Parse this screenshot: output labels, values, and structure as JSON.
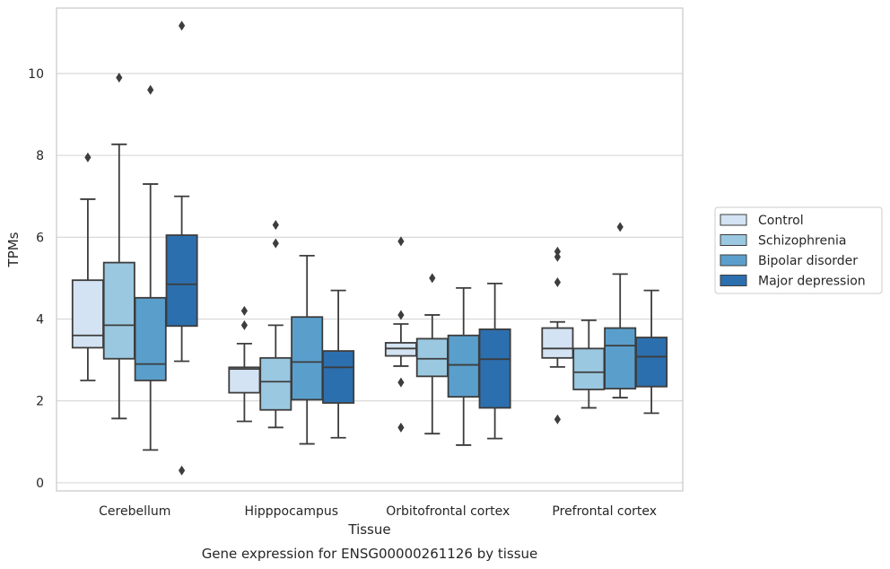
{
  "chart_data": {
    "type": "box",
    "title": "",
    "xlabel": "Tissue",
    "ylabel": "TPMs",
    "caption": "Gene expression for ENSG00000261126 by tissue",
    "ylim": [
      -0.2,
      11.6
    ],
    "yticks": [
      0,
      2,
      4,
      6,
      8,
      10
    ],
    "grid": "horizontal",
    "legend_position": "right",
    "categories": [
      "Cerebellum",
      "Hipppocampus",
      "Orbitofrontal cortex",
      "Prefrontal cortex"
    ],
    "series": [
      {
        "name": "Control",
        "color": "#d3e3f3",
        "boxes": [
          {
            "whislo": 2.5,
            "q1": 3.3,
            "med": 3.6,
            "q3": 4.95,
            "whishi": 6.93,
            "fliers": [
              7.95
            ]
          },
          {
            "whislo": 1.5,
            "q1": 2.2,
            "med": 2.78,
            "q3": 2.82,
            "whishi": 3.4,
            "fliers": [
              3.85,
              4.2
            ]
          },
          {
            "whislo": 2.85,
            "q1": 3.1,
            "med": 3.28,
            "q3": 3.42,
            "whishi": 3.88,
            "fliers": [
              4.1,
              2.45,
              1.35,
              5.9
            ]
          },
          {
            "whislo": 2.83,
            "q1": 3.05,
            "med": 3.28,
            "q3": 3.78,
            "whishi": 3.93,
            "fliers": [
              1.55,
              4.9,
              5.52,
              5.65
            ]
          }
        ]
      },
      {
        "name": "Schizophrenia",
        "color": "#9ac8e0",
        "boxes": [
          {
            "whislo": 1.57,
            "q1": 3.03,
            "med": 3.85,
            "q3": 5.38,
            "whishi": 8.27,
            "fliers": [
              9.9
            ]
          },
          {
            "whislo": 1.35,
            "q1": 1.78,
            "med": 2.47,
            "q3": 3.05,
            "whishi": 3.85,
            "fliers": [
              5.85,
              6.3
            ]
          },
          {
            "whislo": 1.2,
            "q1": 2.6,
            "med": 3.03,
            "q3": 3.52,
            "whishi": 4.1,
            "fliers": [
              5.0
            ]
          },
          {
            "whislo": 1.83,
            "q1": 2.28,
            "med": 2.7,
            "q3": 3.28,
            "whishi": 3.97,
            "fliers": []
          }
        ]
      },
      {
        "name": "Bipolar disorder",
        "color": "#5a9fcc",
        "boxes": [
          {
            "whislo": 0.8,
            "q1": 2.5,
            "med": 2.9,
            "q3": 4.52,
            "whishi": 7.3,
            "fliers": [
              9.6
            ]
          },
          {
            "whislo": 0.95,
            "q1": 2.03,
            "med": 2.95,
            "q3": 4.05,
            "whishi": 5.55,
            "fliers": []
          },
          {
            "whislo": 0.92,
            "q1": 2.1,
            "med": 2.88,
            "q3": 3.6,
            "whishi": 4.76,
            "fliers": []
          },
          {
            "whislo": 2.08,
            "q1": 2.3,
            "med": 3.35,
            "q3": 3.78,
            "whishi": 5.1,
            "fliers": [
              6.25
            ]
          }
        ]
      },
      {
        "name": "Major depression",
        "color": "#2c6fae",
        "boxes": [
          {
            "whislo": 2.97,
            "q1": 3.83,
            "med": 4.85,
            "q3": 6.05,
            "whishi": 7.0,
            "fliers": [
              11.17,
              0.3
            ]
          },
          {
            "whislo": 1.1,
            "q1": 1.95,
            "med": 2.82,
            "q3": 3.22,
            "whishi": 4.7,
            "fliers": []
          },
          {
            "whislo": 1.08,
            "q1": 1.83,
            "med": 3.02,
            "q3": 3.75,
            "whishi": 4.87,
            "fliers": []
          },
          {
            "whislo": 1.7,
            "q1": 2.35,
            "med": 3.08,
            "q3": 3.55,
            "whishi": 4.7,
            "fliers": []
          }
        ]
      }
    ]
  }
}
